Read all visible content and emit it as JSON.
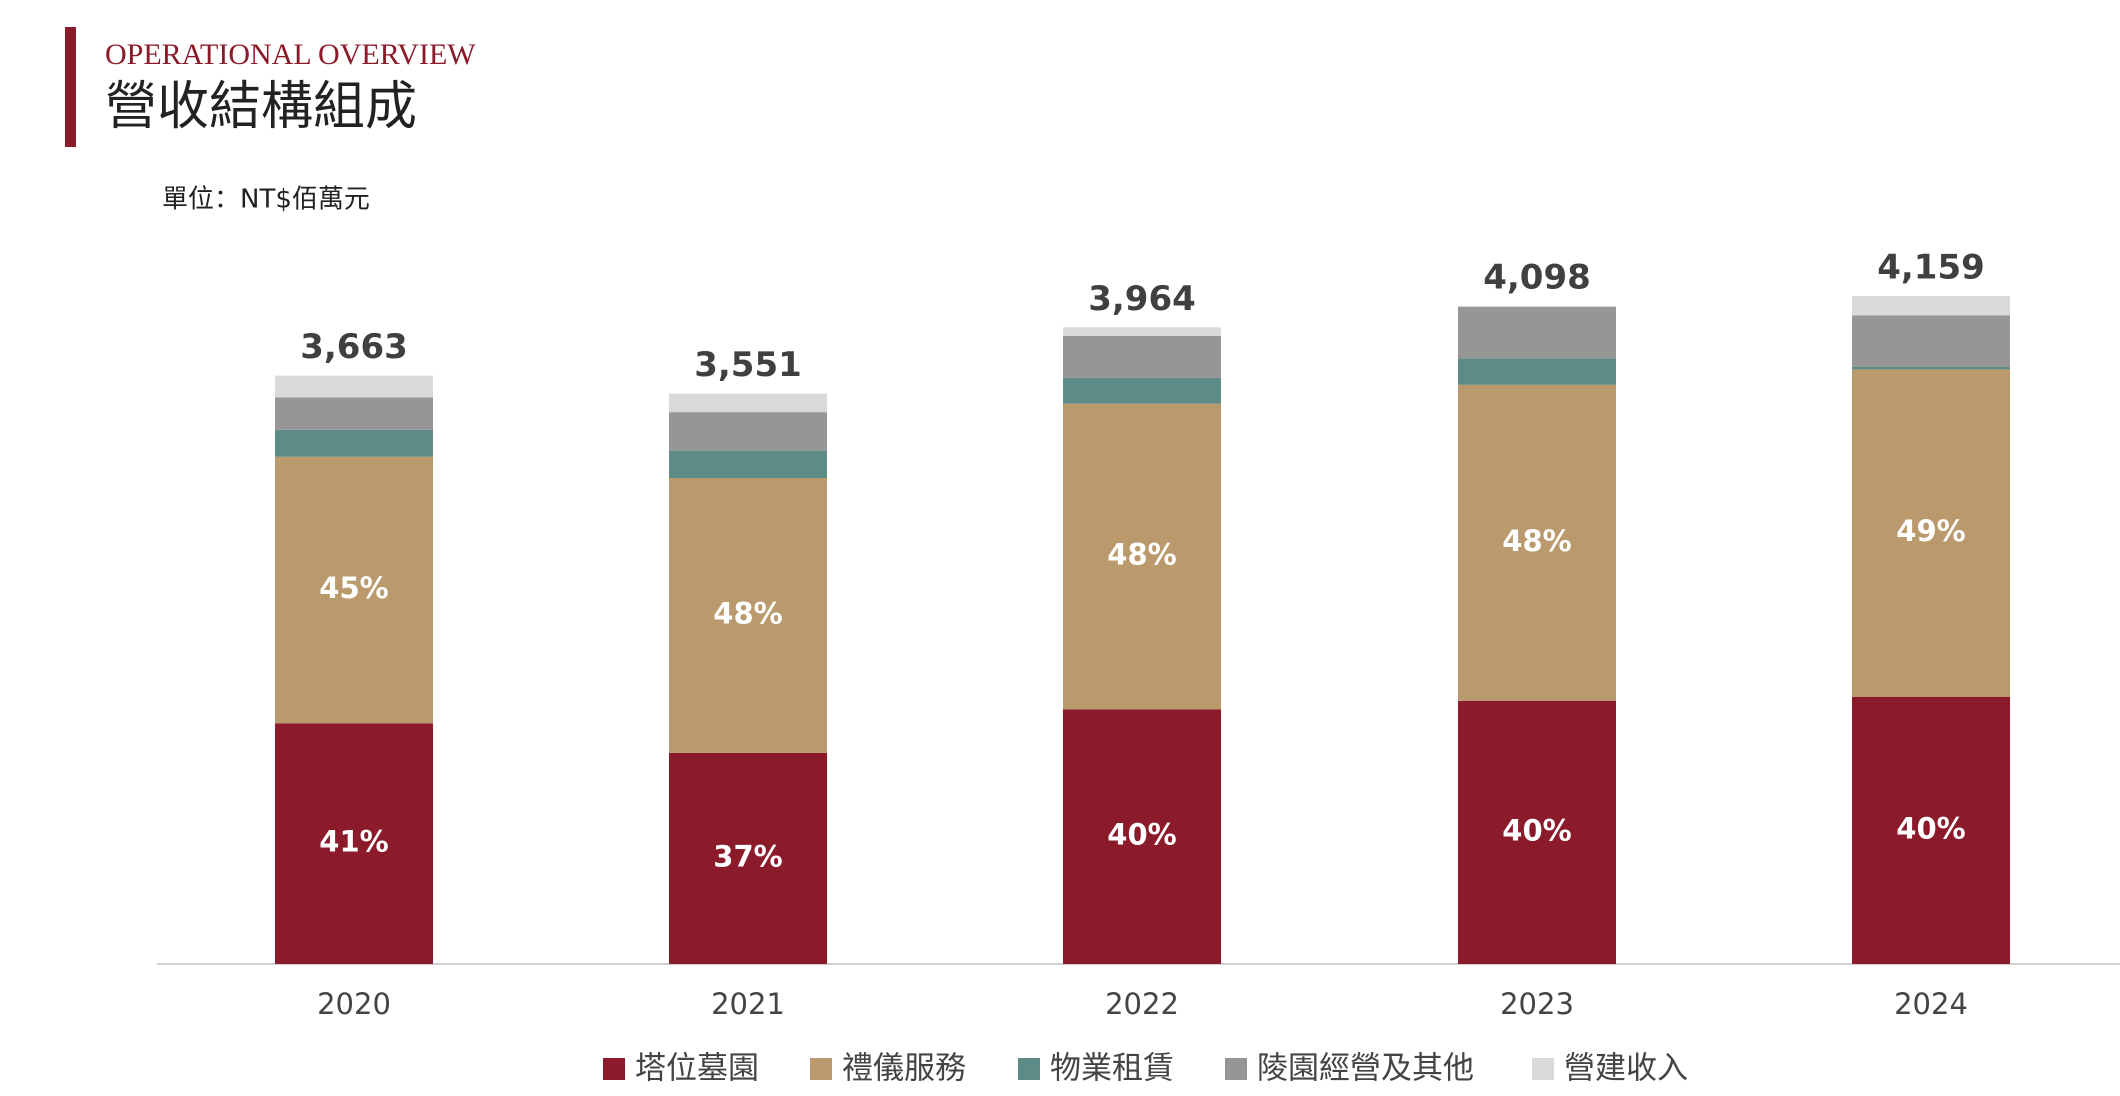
{
  "header": {
    "kicker": "OPERATIONAL OVERVIEW",
    "title": "營收結構組成"
  },
  "chart_data": {
    "type": "stacked_bar",
    "unit_label": "單位：NT$佰萬元",
    "categories": [
      "2020",
      "2021",
      "2022",
      "2023",
      "2024"
    ],
    "series": [
      {
        "name": "塔位墓園",
        "color": "#8b1a2b",
        "values": [
          1499,
          1314,
          1586,
          1639,
          1664
        ],
        "share": [
          41,
          37,
          40,
          40,
          40
        ],
        "share_labels": [
          "41%",
          "37%",
          "40%",
          "40%",
          "40%"
        ]
      },
      {
        "name": "禮儀服務",
        "color": "#ba9a6c",
        "values": [
          1659,
          1712,
          1903,
          1967,
          2038
        ],
        "share": [
          45,
          48,
          48,
          48,
          49
        ],
        "share_labels": [
          "45%",
          "48%",
          "48%",
          "48%",
          "49%"
        ]
      },
      {
        "name": "物業租賃",
        "color": "#5e8b86",
        "values": [
          168,
          170,
          160,
          165,
          17
        ]
      },
      {
        "name": "陵園經營及其他",
        "color": "#969696",
        "values": [
          202,
          240,
          261,
          320,
          320
        ]
      },
      {
        "name": "營建收入",
        "color": "#d9d9d9",
        "values": [
          135,
          115,
          54,
          7,
          120
        ]
      }
    ],
    "totals": [
      3663,
      3551,
      3964,
      4098,
      4159
    ],
    "total_labels": [
      "3,663",
      "3,551",
      "3,964",
      "4,098",
      "4,159"
    ],
    "legend": "bottom"
  }
}
